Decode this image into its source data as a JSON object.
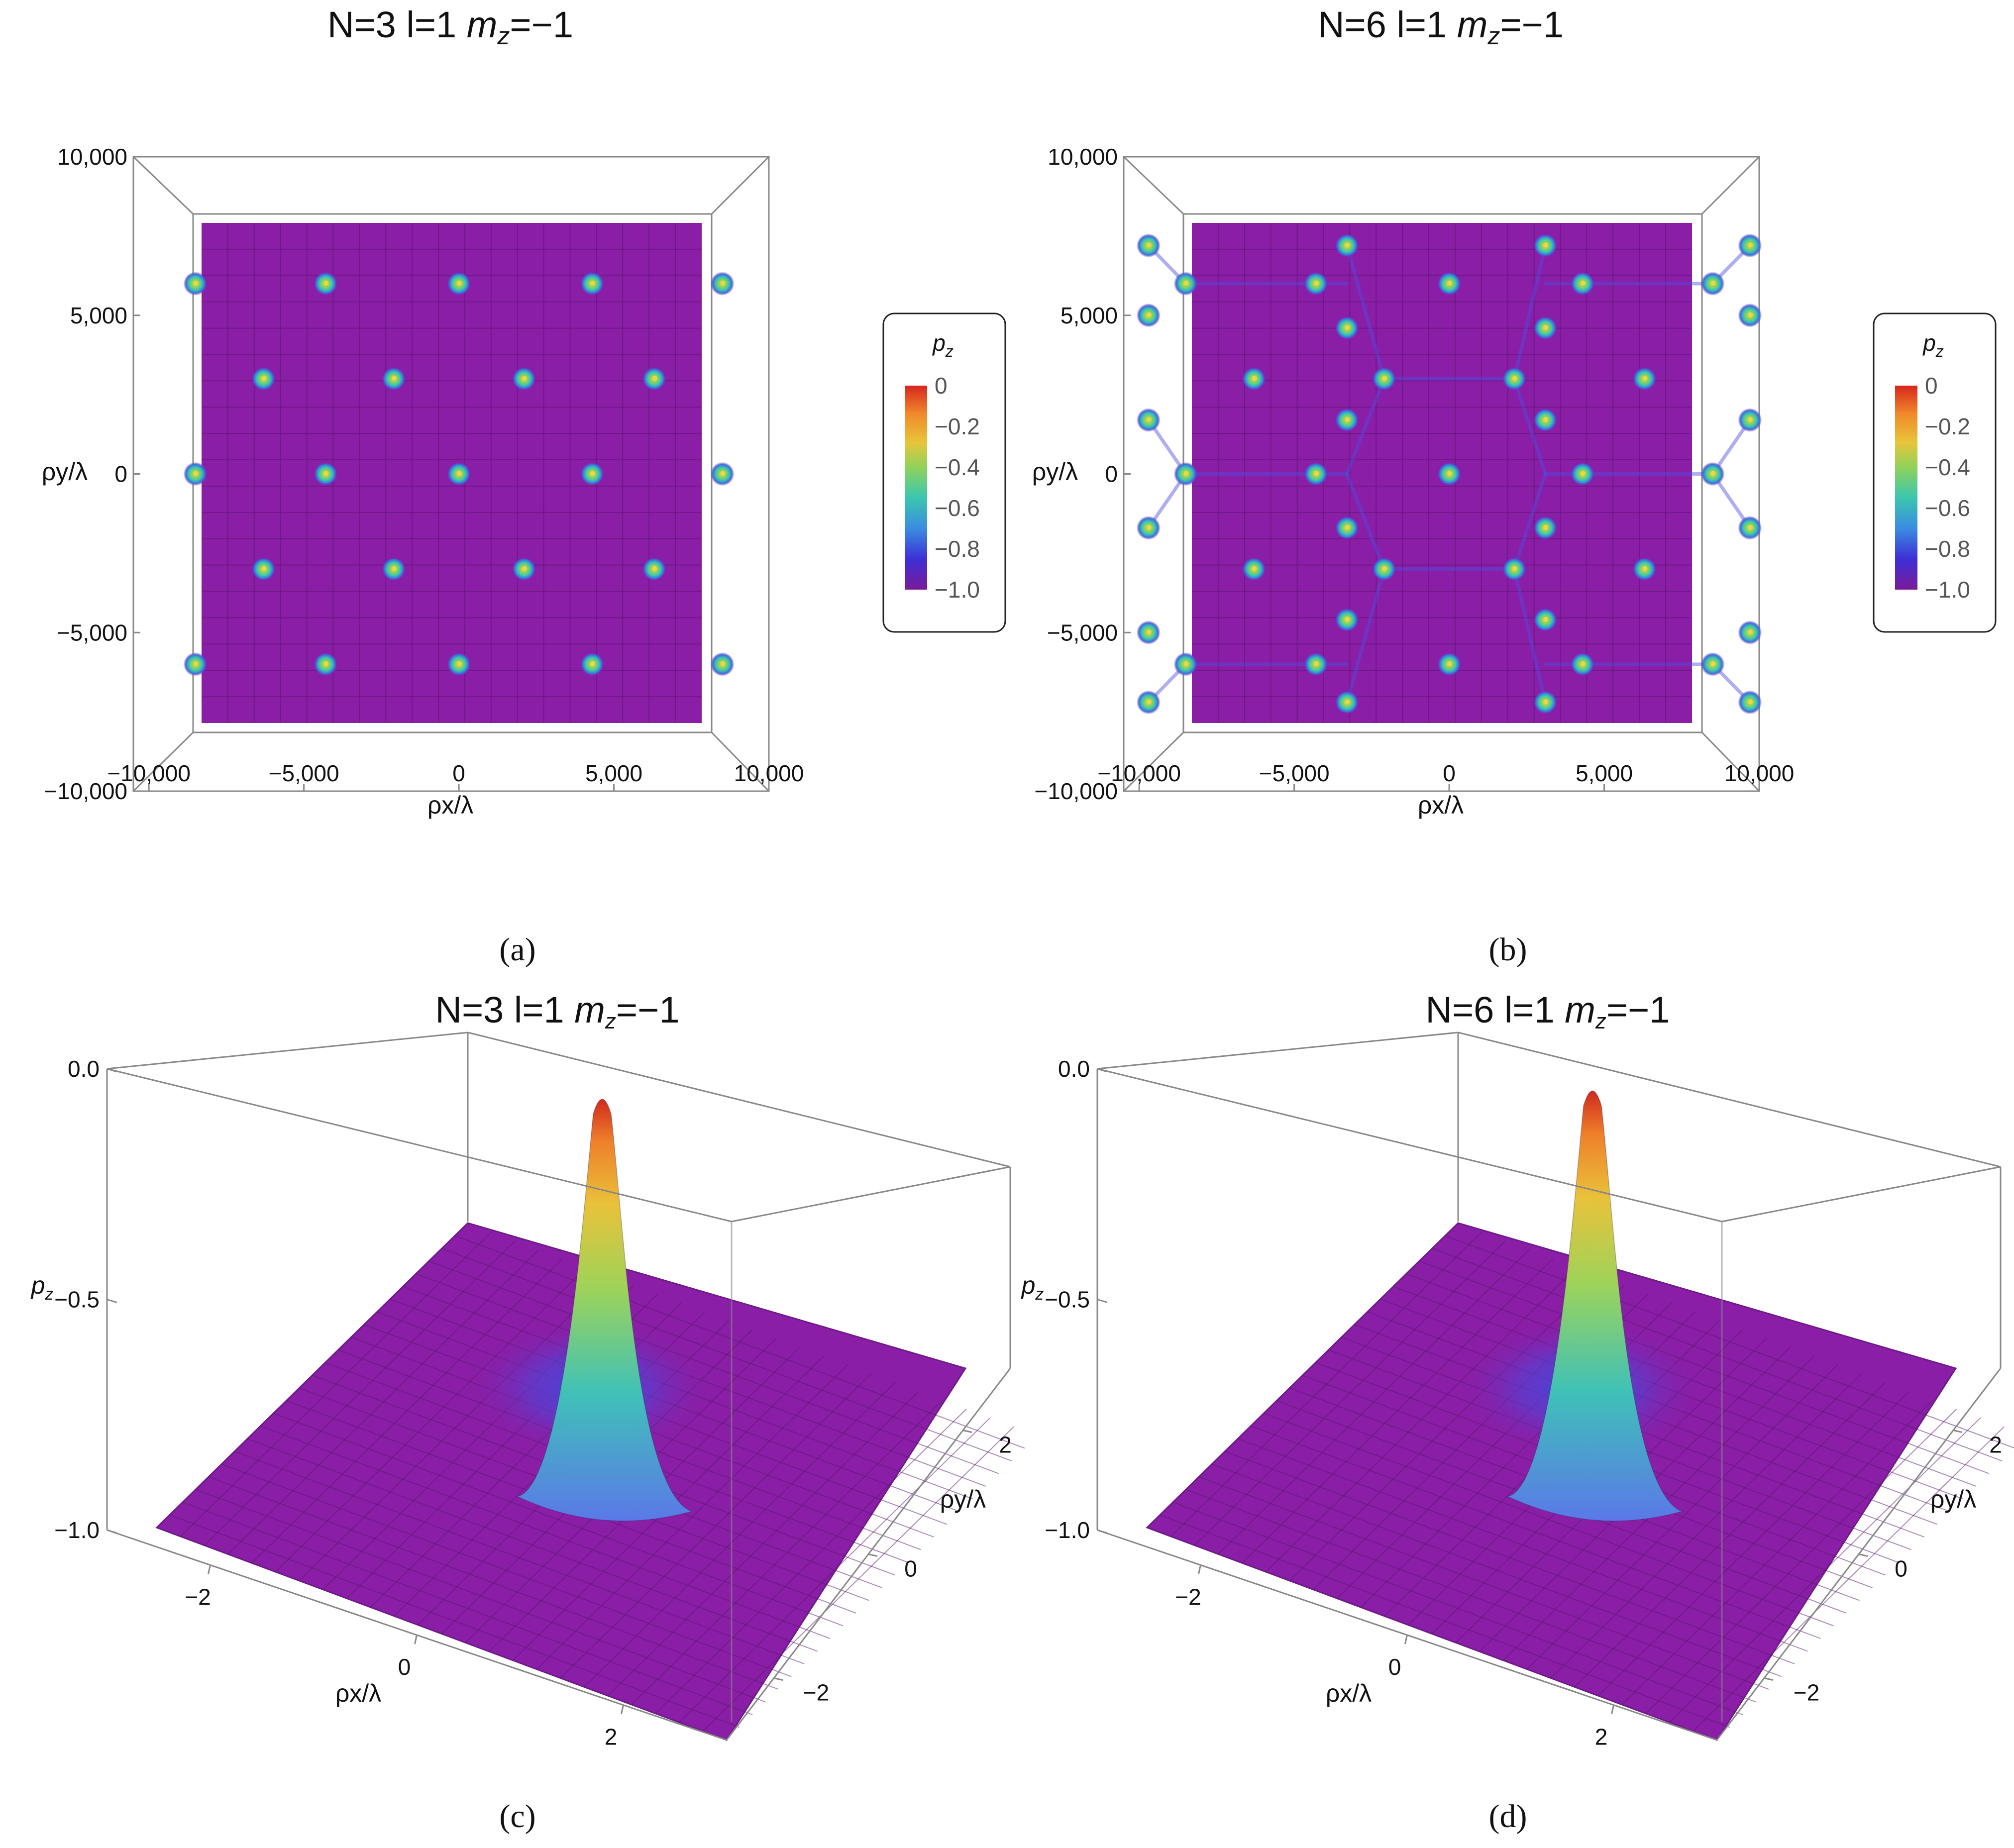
{
  "colors": {
    "background_purple": "#8a1ea6",
    "colormap": [
      "#7a1a98",
      "#3d2fd6",
      "#3a8de0",
      "#3bc6b0",
      "#8fd25a",
      "#e8c53a",
      "#f08a2a",
      "#d7261e"
    ]
  },
  "chart_data": [
    {
      "panel": "a",
      "type": "heatmap",
      "title_prefix": "N=3 l=1 ",
      "title_m": "m",
      "title_sub": "z",
      "title_suffix": "=−1",
      "xlabel": "ρx/λ",
      "ylabel": "ρy/λ",
      "xlim": [
        -10500,
        10000
      ],
      "ylim": [
        -10000,
        10000
      ],
      "xticks": [
        "−10,000",
        "−5,000",
        "0",
        "5,000",
        "10,000"
      ],
      "yticks": [
        "10,000",
        "5,000",
        "0",
        "−5,000",
        "−10,000"
      ],
      "peaks": [
        [
          -8500,
          6000
        ],
        [
          -4300,
          6000
        ],
        [
          0,
          6000
        ],
        [
          4300,
          6000
        ],
        [
          8500,
          6000
        ],
        [
          -6300,
          3000
        ],
        [
          -2100,
          3000
        ],
        [
          2100,
          3000
        ],
        [
          6300,
          3000
        ],
        [
          -8500,
          0
        ],
        [
          -4300,
          0
        ],
        [
          0,
          0
        ],
        [
          4300,
          0
        ],
        [
          8500,
          0
        ],
        [
          -6300,
          -3000
        ],
        [
          -2100,
          -3000
        ],
        [
          2100,
          -3000
        ],
        [
          6300,
          -3000
        ],
        [
          -8500,
          -6000
        ],
        [
          -4300,
          -6000
        ],
        [
          0,
          -6000
        ],
        [
          4300,
          -6000
        ],
        [
          8500,
          -6000
        ]
      ],
      "legend": {
        "title": "p",
        "title_sub": "z",
        "ticks": [
          "0",
          "−0.2",
          "−0.4",
          "−0.6",
          "−0.8",
          "−1.0"
        ],
        "range": [
          -1.0,
          0
        ]
      },
      "caption": "(a)"
    },
    {
      "panel": "b",
      "type": "heatmap",
      "title_prefix": "N=6 l=1 ",
      "title_m": "m",
      "title_sub": "z",
      "title_suffix": "=−1",
      "xlabel": "ρx/λ",
      "ylabel": "ρy/λ",
      "xlim": [
        -10500,
        10000
      ],
      "ylim": [
        -10000,
        10000
      ],
      "xticks": [
        "−10,000",
        "−5,000",
        "0",
        "5,000",
        "10,000"
      ],
      "yticks": [
        "10,000",
        "5,000",
        "0",
        "−5,000",
        "−10,000"
      ],
      "peaks": [
        [
          -8500,
          6000
        ],
        [
          -4300,
          6000
        ],
        [
          0,
          6000
        ],
        [
          4300,
          6000
        ],
        [
          8500,
          6000
        ],
        [
          -6300,
          3000
        ],
        [
          -2100,
          3000
        ],
        [
          2100,
          3000
        ],
        [
          6300,
          3000
        ],
        [
          -8500,
          0
        ],
        [
          -4300,
          0
        ],
        [
          0,
          0
        ],
        [
          4300,
          0
        ],
        [
          8500,
          0
        ],
        [
          -6300,
          -3000
        ],
        [
          -2100,
          -3000
        ],
        [
          2100,
          -3000
        ],
        [
          6300,
          -3000
        ],
        [
          -8500,
          -6000
        ],
        [
          -4300,
          -6000
        ],
        [
          0,
          -6000
        ],
        [
          4300,
          -6000
        ],
        [
          8500,
          -6000
        ],
        [
          -9700,
          7200
        ],
        [
          -9700,
          5000
        ],
        [
          -9700,
          1700
        ],
        [
          -9700,
          -1700
        ],
        [
          -9700,
          -5000
        ],
        [
          -9700,
          -7200
        ],
        [
          9700,
          7200
        ],
        [
          9700,
          5000
        ],
        [
          9700,
          1700
        ],
        [
          9700,
          -1700
        ],
        [
          9700,
          -5000
        ],
        [
          9700,
          -7200
        ],
        [
          -3300,
          7200
        ],
        [
          3100,
          7200
        ],
        [
          -3300,
          -7200
        ],
        [
          3100,
          -7200
        ],
        [
          -3300,
          4600
        ],
        [
          3100,
          4600
        ],
        [
          -3300,
          -4600
        ],
        [
          3100,
          -4600
        ],
        [
          -3300,
          1700
        ],
        [
          3100,
          1700
        ],
        [
          -3300,
          -1700
        ],
        [
          3100,
          -1700
        ]
      ],
      "legend": {
        "title": "p",
        "title_sub": "z",
        "ticks": [
          "0",
          "−0.2",
          "−0.4",
          "−0.6",
          "−0.8",
          "−1.0"
        ],
        "range": [
          -1.0,
          0
        ]
      },
      "caption": "(b)"
    },
    {
      "panel": "c",
      "type": "surface",
      "title_prefix": "N=3 l=1 ",
      "title_m": "m",
      "title_sub": "z",
      "title_suffix": "=−1",
      "xlabel": "ρx/λ",
      "ylabel": "ρy/λ",
      "zlabel": "p",
      "zlabel_sub": "z",
      "xlim": [
        -3,
        3
      ],
      "ylim": [
        -3,
        3
      ],
      "zlim": [
        -1.0,
        0.0
      ],
      "xticks": [
        "−2",
        "0",
        "2"
      ],
      "yticks": [
        "2",
        "0",
        "−2"
      ],
      "zticks": [
        "0.0",
        "−0.5",
        "−1.0"
      ],
      "peak_center": [
        0,
        0
      ],
      "peak_value": -0.05,
      "baseline": -1.0,
      "caption": "(c)"
    },
    {
      "panel": "d",
      "type": "surface",
      "title_prefix": "N=6 l=1 ",
      "title_m": "m",
      "title_sub": "z",
      "title_suffix": "=−1",
      "xlabel": "ρx/λ",
      "ylabel": "ρy/λ",
      "zlabel": "p",
      "zlabel_sub": "z",
      "xlim": [
        -3,
        3
      ],
      "ylim": [
        -3,
        3
      ],
      "zlim": [
        -1.0,
        0.0
      ],
      "xticks": [
        "−2",
        "0",
        "2"
      ],
      "yticks": [
        "2",
        "0",
        "−2"
      ],
      "zticks": [
        "0.0",
        "−0.5",
        "−1.0"
      ],
      "peak_center": [
        0,
        0
      ],
      "peak_value": -0.03,
      "baseline": -1.0,
      "caption": "(d)"
    }
  ]
}
